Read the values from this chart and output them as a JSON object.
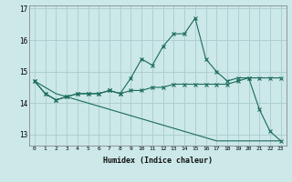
{
  "xlabel": "Humidex (Indice chaleur)",
  "background_color": "#cce8e8",
  "grid_color": "#aacccc",
  "line_color": "#1a6b5a",
  "x_values": [
    0,
    1,
    2,
    3,
    4,
    5,
    6,
    7,
    8,
    9,
    10,
    11,
    12,
    13,
    14,
    15,
    16,
    17,
    18,
    19,
    20,
    21,
    22,
    23
  ],
  "line1_y": [
    14.7,
    14.3,
    14.1,
    14.2,
    14.3,
    14.3,
    14.3,
    14.4,
    14.3,
    14.8,
    15.4,
    15.2,
    15.8,
    16.2,
    16.2,
    16.7,
    15.4,
    15.0,
    14.7,
    14.8,
    14.8,
    13.8,
    13.1,
    12.8
  ],
  "line2_y": [
    14.7,
    14.3,
    14.1,
    14.2,
    14.3,
    14.3,
    14.3,
    14.4,
    14.3,
    14.4,
    14.4,
    14.5,
    14.5,
    14.6,
    14.6,
    14.6,
    14.6,
    14.6,
    14.6,
    14.7,
    14.8,
    14.8,
    14.8,
    14.8
  ],
  "line3_y": [
    14.7,
    14.5,
    14.3,
    14.2,
    14.1,
    14.0,
    13.9,
    13.8,
    13.7,
    13.6,
    13.5,
    13.4,
    13.3,
    13.2,
    13.1,
    13.0,
    12.9,
    12.8,
    12.8,
    12.8,
    12.8,
    12.8,
    12.8,
    12.8
  ],
  "ylim": [
    12.65,
    17.1
  ],
  "yticks": [
    13,
    14,
    15,
    16,
    17
  ],
  "xticks": [
    0,
    1,
    2,
    3,
    4,
    5,
    6,
    7,
    8,
    9,
    10,
    11,
    12,
    13,
    14,
    15,
    16,
    17,
    18,
    19,
    20,
    21,
    22,
    23
  ]
}
